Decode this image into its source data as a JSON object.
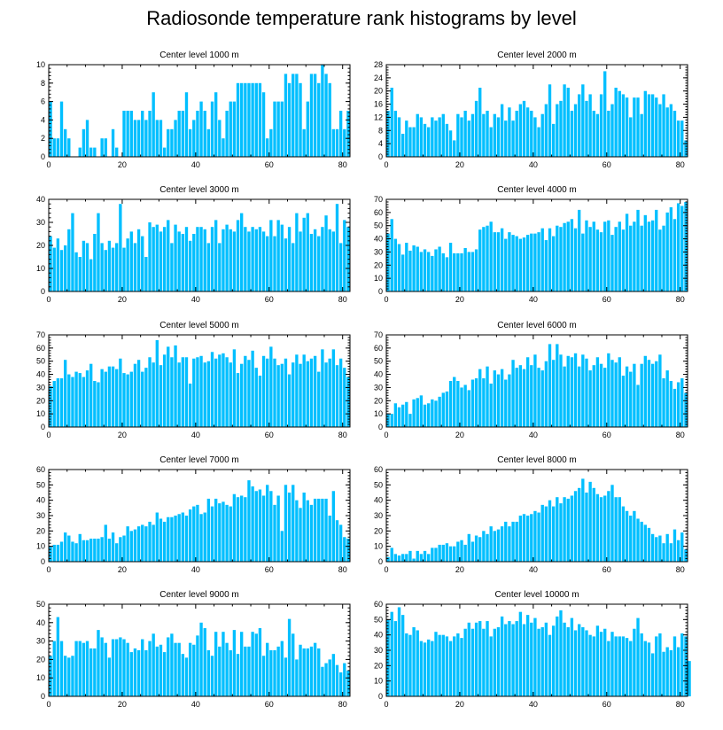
{
  "figure_title": "Radiosonde temperature rank histograms by level",
  "colors": {
    "bar": "#00bfff",
    "frame": "#000000",
    "background": "#ffffff"
  },
  "chart_data": [
    {
      "type": "bar",
      "title": "Center level 1000 m",
      "xlim": [
        0,
        82
      ],
      "ylim": [
        0,
        10
      ],
      "xticks": [
        0,
        20,
        40,
        60,
        80
      ],
      "yticks": [
        0,
        2,
        4,
        6,
        8,
        10
      ],
      "values": [
        6,
        2,
        2,
        6,
        3,
        2,
        0,
        0,
        1,
        3,
        4,
        1,
        1,
        0,
        2,
        2,
        0,
        3,
        1,
        0,
        5,
        5,
        5,
        4,
        4,
        5,
        4,
        5,
        7,
        4,
        4,
        1,
        3,
        3,
        4,
        5,
        5,
        7,
        3,
        4,
        5,
        6,
        5,
        3,
        6,
        7,
        4,
        2,
        5,
        6,
        6,
        8,
        8,
        8,
        8,
        8,
        8,
        8,
        7,
        2,
        3,
        6,
        6,
        6,
        9,
        8,
        9,
        9,
        8,
        3,
        6,
        9,
        9,
        8,
        10,
        9,
        8,
        3,
        3,
        5,
        3,
        5
      ]
    },
    {
      "type": "bar",
      "title": "Center level 2000 m",
      "xlim": [
        0,
        82
      ],
      "ylim": [
        0,
        28
      ],
      "xticks": [
        0,
        20,
        40,
        60,
        80
      ],
      "yticks": [
        0,
        4,
        8,
        12,
        16,
        20,
        24,
        28
      ],
      "values": [
        14,
        21,
        14,
        12,
        7,
        11,
        9,
        9,
        13,
        12,
        10,
        9,
        12,
        11,
        12,
        13,
        10,
        8,
        5,
        13,
        12,
        14,
        11,
        13,
        17,
        21,
        13,
        14,
        9,
        13,
        12,
        16,
        11,
        15,
        11,
        14,
        16,
        17,
        15,
        14,
        12,
        9,
        13,
        16,
        22,
        10,
        16,
        17,
        22,
        21,
        14,
        16,
        19,
        22,
        17,
        19,
        14,
        13,
        19,
        26,
        14,
        16,
        21,
        20,
        19,
        18,
        12,
        18,
        18,
        13,
        20,
        19,
        19,
        18,
        16,
        19,
        15,
        16,
        14,
        11,
        11,
        5
      ]
    },
    {
      "type": "bar",
      "title": "Center level 3000 m",
      "xlim": [
        0,
        82
      ],
      "ylim": [
        0,
        40
      ],
      "xticks": [
        0,
        20,
        40,
        60,
        80
      ],
      "yticks": [
        0,
        10,
        20,
        30,
        40
      ],
      "values": [
        24,
        19,
        23,
        18,
        20,
        27,
        34,
        17,
        15,
        22,
        21,
        14,
        25,
        34,
        21,
        18,
        22,
        19,
        21,
        38,
        19,
        23,
        26,
        21,
        27,
        24,
        15,
        30,
        28,
        29,
        26,
        28,
        31,
        21,
        29,
        26,
        25,
        28,
        22,
        25,
        28,
        28,
        27,
        21,
        28,
        31,
        21,
        27,
        29,
        27,
        26,
        31,
        34,
        28,
        26,
        28,
        27,
        28,
        26,
        24,
        31,
        24,
        31,
        29,
        23,
        28,
        21,
        34,
        26,
        32,
        34,
        25,
        27,
        24,
        28,
        33,
        27,
        26,
        38,
        21,
        31,
        28
      ]
    },
    {
      "type": "bar",
      "title": "Center level 4000 m",
      "xlim": [
        0,
        82
      ],
      "ylim": [
        0,
        70
      ],
      "xticks": [
        0,
        20,
        40,
        60,
        80
      ],
      "yticks": [
        0,
        10,
        20,
        30,
        40,
        50,
        60,
        70
      ],
      "values": [
        44,
        55,
        40,
        36,
        28,
        37,
        31,
        35,
        34,
        30,
        32,
        30,
        27,
        32,
        34,
        29,
        26,
        37,
        29,
        29,
        29,
        33,
        30,
        30,
        32,
        47,
        49,
        50,
        53,
        45,
        45,
        48,
        40,
        45,
        43,
        42,
        40,
        41,
        43,
        44,
        44,
        45,
        48,
        39,
        48,
        42,
        50,
        49,
        52,
        53,
        55,
        48,
        62,
        44,
        54,
        49,
        53,
        47,
        45,
        53,
        54,
        43,
        49,
        53,
        47,
        59,
        50,
        53,
        62,
        50,
        58,
        53,
        54,
        62,
        47,
        50,
        60,
        64,
        55,
        67,
        65,
        68
      ]
    },
    {
      "type": "bar",
      "title": "Center level 5000 m",
      "xlim": [
        0,
        82
      ],
      "ylim": [
        0,
        70
      ],
      "xticks": [
        0,
        20,
        40,
        60,
        80
      ],
      "yticks": [
        0,
        10,
        20,
        30,
        40,
        50,
        60,
        70
      ],
      "values": [
        31,
        35,
        37,
        37,
        51,
        40,
        38,
        42,
        41,
        38,
        43,
        48,
        35,
        34,
        44,
        42,
        46,
        46,
        44,
        52,
        41,
        40,
        42,
        48,
        51,
        42,
        45,
        53,
        49,
        66,
        47,
        55,
        61,
        53,
        62,
        49,
        53,
        53,
        33,
        52,
        53,
        54,
        49,
        50,
        57,
        52,
        55,
        56,
        53,
        49,
        59,
        41,
        48,
        54,
        51,
        58,
        45,
        39,
        54,
        52,
        61,
        52,
        47,
        48,
        52,
        40,
        49,
        55,
        48,
        55,
        50,
        52,
        54,
        42,
        59,
        49,
        52,
        59,
        47,
        52,
        45,
        38
      ]
    },
    {
      "type": "bar",
      "title": "Center level 6000 m",
      "xlim": [
        0,
        82
      ],
      "ylim": [
        0,
        70
      ],
      "xticks": [
        0,
        20,
        40,
        60,
        80
      ],
      "yticks": [
        0,
        10,
        20,
        30,
        40,
        50,
        60,
        70
      ],
      "values": [
        10,
        10,
        18,
        15,
        17,
        19,
        10,
        21,
        22,
        24,
        17,
        18,
        21,
        20,
        23,
        26,
        27,
        35,
        38,
        35,
        30,
        32,
        28,
        36,
        37,
        44,
        37,
        46,
        33,
        43,
        40,
        44,
        36,
        40,
        51,
        45,
        47,
        44,
        53,
        47,
        55,
        45,
        43,
        50,
        63,
        51,
        63,
        55,
        46,
        54,
        53,
        56,
        46,
        55,
        52,
        43,
        47,
        53,
        48,
        45,
        56,
        51,
        49,
        53,
        39,
        46,
        42,
        48,
        32,
        48,
        54,
        51,
        48,
        50,
        55,
        37,
        43,
        35,
        29,
        34,
        37,
        26
      ]
    },
    {
      "type": "bar",
      "title": "Center level 7000 m",
      "xlim": [
        0,
        82
      ],
      "ylim": [
        0,
        60
      ],
      "xticks": [
        0,
        20,
        40,
        60,
        80
      ],
      "yticks": [
        0,
        10,
        20,
        30,
        40,
        50,
        60
      ],
      "values": [
        10,
        11,
        11,
        13,
        19,
        17,
        13,
        12,
        18,
        14,
        14,
        15,
        15,
        15,
        16,
        24,
        15,
        19,
        12,
        16,
        17,
        23,
        20,
        21,
        23,
        24,
        23,
        26,
        24,
        32,
        28,
        26,
        29,
        29,
        30,
        31,
        32,
        30,
        34,
        36,
        37,
        31,
        32,
        41,
        36,
        41,
        38,
        39,
        37,
        36,
        44,
        42,
        43,
        42,
        53,
        49,
        46,
        47,
        43,
        50,
        46,
        37,
        43,
        20,
        50,
        45,
        50,
        40,
        35,
        45,
        40,
        37,
        41,
        41,
        41,
        41,
        30,
        46,
        27,
        24,
        16,
        15
      ]
    },
    {
      "type": "bar",
      "title": "Center level 8000 m",
      "xlim": [
        0,
        82
      ],
      "ylim": [
        0,
        60
      ],
      "xticks": [
        0,
        20,
        40,
        60,
        80
      ],
      "yticks": [
        0,
        10,
        20,
        30,
        40,
        50,
        60
      ],
      "values": [
        3,
        9,
        5,
        4,
        5,
        5,
        7,
        2,
        7,
        5,
        7,
        5,
        9,
        9,
        11,
        11,
        12,
        10,
        10,
        13,
        14,
        11,
        18,
        13,
        17,
        16,
        20,
        18,
        23,
        20,
        21,
        23,
        26,
        23,
        26,
        26,
        30,
        31,
        30,
        31,
        33,
        32,
        37,
        36,
        40,
        36,
        42,
        38,
        42,
        41,
        43,
        46,
        48,
        54,
        45,
        52,
        48,
        44,
        42,
        43,
        46,
        50,
        42,
        42,
        36,
        33,
        30,
        33,
        28,
        26,
        24,
        22,
        18,
        16,
        17,
        12,
        18,
        12,
        21,
        14,
        19,
        8
      ]
    },
    {
      "type": "bar",
      "title": "Center level 9000 m",
      "xlim": [
        0,
        82
      ],
      "ylim": [
        0,
        50
      ],
      "xticks": [
        0,
        20,
        40,
        60,
        80
      ],
      "yticks": [
        0,
        10,
        20,
        30,
        40,
        50
      ],
      "values": [
        22,
        30,
        43,
        30,
        22,
        21,
        22,
        30,
        30,
        29,
        30,
        26,
        26,
        36,
        32,
        29,
        21,
        31,
        31,
        32,
        31,
        29,
        24,
        26,
        25,
        31,
        25,
        30,
        34,
        27,
        28,
        24,
        32,
        34,
        29,
        29,
        23,
        21,
        29,
        28,
        33,
        40,
        37,
        25,
        22,
        35,
        27,
        35,
        29,
        25,
        36,
        23,
        35,
        27,
        27,
        35,
        34,
        37,
        22,
        29,
        25,
        25,
        27,
        30,
        21,
        42,
        34,
        20,
        28,
        26,
        26,
        27,
        29,
        26,
        16,
        18,
        20,
        23,
        17,
        13,
        18,
        14
      ]
    },
    {
      "type": "bar",
      "title": "Center level 10000 m",
      "xlim": [
        0,
        82
      ],
      "ylim": [
        0,
        60
      ],
      "xticks": [
        0,
        20,
        40,
        60,
        80
      ],
      "yticks": [
        0,
        10,
        20,
        30,
        40,
        50,
        60
      ],
      "values": [
        50,
        55,
        49,
        58,
        53,
        41,
        40,
        45,
        43,
        36,
        35,
        37,
        36,
        42,
        40,
        40,
        39,
        36,
        39,
        41,
        38,
        44,
        48,
        44,
        48,
        49,
        44,
        49,
        39,
        44,
        45,
        52,
        47,
        49,
        47,
        49,
        55,
        47,
        53,
        48,
        51,
        44,
        45,
        48,
        40,
        46,
        52,
        56,
        48,
        45,
        51,
        43,
        47,
        45,
        43,
        40,
        39,
        46,
        42,
        44,
        36,
        42,
        39,
        39,
        39,
        38,
        36,
        44,
        51,
        41,
        36,
        35,
        28,
        39,
        41,
        29,
        32,
        30,
        39,
        32,
        41,
        39,
        23
      ]
    }
  ]
}
